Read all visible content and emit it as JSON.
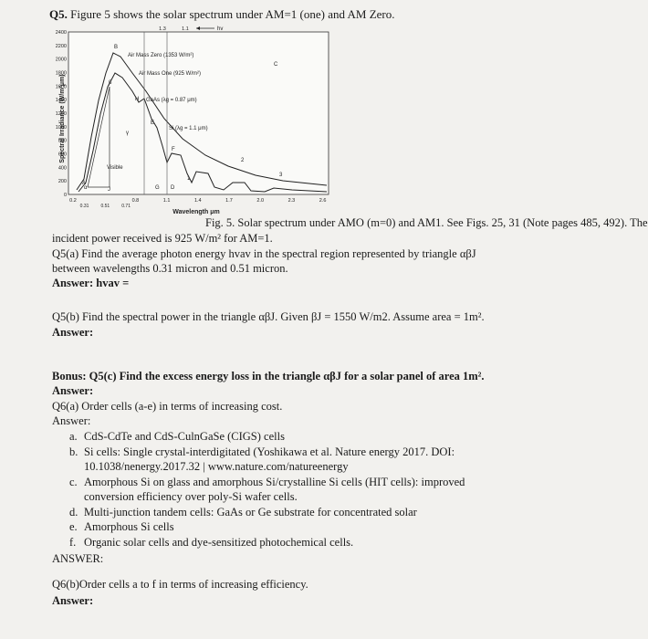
{
  "question": {
    "number": "Q5.",
    "text": "Figure 5 shows the solar spectrum under AM=1 (one) and AM Zero."
  },
  "figure": {
    "y_axis_label": "Spectral Irradiance (W/m²μm)",
    "x_axis_label": "Wavelength μm",
    "y_ticks": [
      "0",
      "200",
      "400",
      "600",
      "800",
      "1000",
      "1200",
      "1400",
      "1600",
      "1800",
      "2000",
      "2200",
      "2400"
    ],
    "x_ticks": [
      "0.2",
      "0.8",
      "1.1",
      "1.4",
      "1.7",
      "2.0",
      "2.3",
      "2.6"
    ],
    "x_sub_ticks": [
      "0.31",
      "0.51",
      "0.71"
    ],
    "top_ticks": [
      "1.3",
      "1.1"
    ],
    "hv": "hv",
    "am0_label": "Air Mass Zero (1353 W/m²)",
    "am1_label": "Air Mass One (925 W/m²)",
    "gaas_label": "GaAs (λg = 0.87 μm)",
    "si_label": "Si (λg = 1.1 μm)",
    "visible_label": "Visible",
    "points": [
      "A",
      "B",
      "C",
      "D",
      "E",
      "F",
      "G",
      "H",
      "α",
      "β",
      "J",
      "γ",
      "1",
      "2",
      "3"
    ]
  },
  "caption": [
    "Fig. 5. Solar spectrum under AMO (m=0) and AM1. See Figs. 25, 31 (Note pages 485, 492). The",
    "incident power received is 925 W/m² for AM=1."
  ],
  "q5a": [
    "Q5(a) Find the average photon energy hvav in the spectral region represented by triangle αβJ",
    "between wavelengths 0.31 micron and 0.51 micron."
  ],
  "q5a_answer": "Answer: hvav =",
  "q5b": "Q5(b) Find the spectral power in the triangle αβJ. Given βJ = 1550 W/m2. Assume area = 1m².",
  "q5b_answer": "Answer:",
  "bonus": "Bonus: Q5(c) Find the excess energy loss in the triangle αβJ for a solar panel of area 1m².",
  "bonus_answer": "Answer:",
  "q6a": "Q6(a) Order cells (a-e) in terms of increasing cost.",
  "q6a_answer": "Answer:",
  "list": [
    {
      "marker": "a.",
      "lines": [
        "CdS-CdTe and CdS-CulnGaSe (CIGS) cells"
      ]
    },
    {
      "marker": "b.",
      "lines": [
        "Si cells: Single crystal-interdigitated (Yoshikawa et al. Nature energy 2017. DOI:",
        "10.1038/nenergy.2017.32 | www.nature.com/natureenergy"
      ]
    },
    {
      "marker": "c.",
      "lines": [
        "Amorphous Si on glass and amorphous Si/crystalline Si cells (HIT cells): improved",
        "conversion efficiency over poly-Si wafer cells."
      ]
    },
    {
      "marker": "d.",
      "lines": [
        "Multi-junction tandem cells: GaAs or Ge substrate for concentrated solar"
      ]
    },
    {
      "marker": "e.",
      "lines": [
        "Amorphous Si cells"
      ]
    },
    {
      "marker": "f.",
      "lines": [
        "Organic solar cells and dye-sensitized photochemical cells."
      ]
    }
  ],
  "q6a_final": "ANSWER:",
  "q6b": "Q6(b)Order cells a to f in terms of increasing efficiency.",
  "q6b_answer": "Answer:"
}
